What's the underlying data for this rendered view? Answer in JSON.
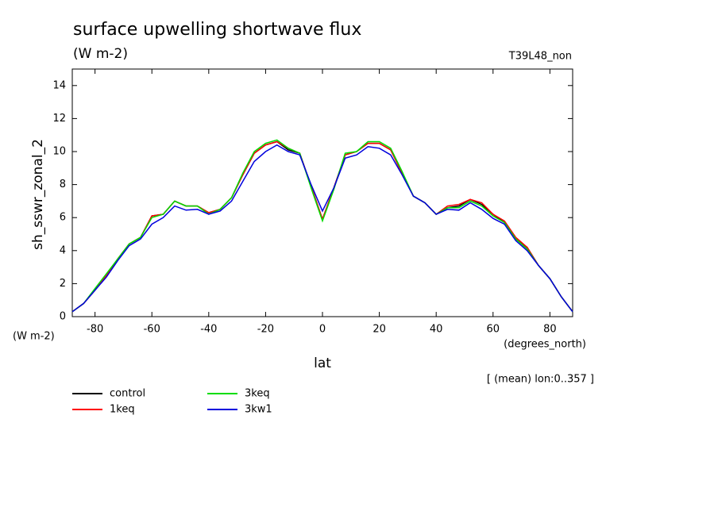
{
  "chart_data": {
    "type": "line",
    "title": "surface upwelling shortwave flux",
    "subtitle": "(W m-2)",
    "run_label": "T39L48_non",
    "y_axis_label": "sh_sswr_zonal_2",
    "y_units": "(W m-2)",
    "x_axis_label": "lat",
    "x_units": "(degrees_north)",
    "annotation": "[ (mean) lon:0..357 ]",
    "xlim": [
      -88,
      88
    ],
    "ylim": [
      0,
      15
    ],
    "xticks": [
      -80,
      -60,
      -40,
      -20,
      0,
      20,
      40,
      60,
      80
    ],
    "yticks": [
      0,
      2,
      4,
      6,
      8,
      10,
      12,
      14
    ],
    "x": [
      -88,
      -84,
      -80,
      -76,
      -72,
      -68,
      -64,
      -60,
      -56,
      -52,
      -48,
      -44,
      -40,
      -36,
      -32,
      -28,
      -24,
      -20,
      -16,
      -12,
      -8,
      -4,
      0,
      4,
      8,
      12,
      16,
      20,
      24,
      28,
      32,
      36,
      40,
      44,
      48,
      52,
      56,
      60,
      64,
      68,
      72,
      76,
      80,
      84,
      88
    ],
    "series": [
      {
        "name": "control",
        "color": "#000000",
        "values": [
          0.3,
          0.8,
          1.6,
          2.5,
          3.5,
          4.4,
          4.8,
          6.1,
          6.2,
          7.0,
          6.7,
          6.7,
          6.3,
          6.5,
          7.2,
          8.6,
          9.9,
          10.4,
          10.6,
          10.1,
          9.9,
          7.9,
          5.9,
          7.8,
          9.8,
          10.0,
          10.5,
          10.5,
          10.1,
          8.7,
          7.3,
          6.9,
          6.2,
          6.6,
          6.7,
          7.1,
          6.8,
          6.2,
          5.7,
          4.7,
          4.2,
          3.1,
          2.3,
          1.2,
          0.3
        ]
      },
      {
        "name": "1keq",
        "color": "#ff0000",
        "values": [
          0.3,
          0.8,
          1.6,
          2.5,
          3.5,
          4.4,
          4.8,
          6.1,
          6.2,
          7.0,
          6.7,
          6.7,
          6.3,
          6.5,
          7.2,
          8.6,
          9.9,
          10.4,
          10.6,
          10.2,
          9.9,
          7.9,
          5.9,
          7.8,
          9.8,
          10.0,
          10.5,
          10.5,
          10.1,
          8.7,
          7.3,
          6.9,
          6.2,
          6.7,
          6.8,
          7.1,
          6.9,
          6.2,
          5.8,
          4.8,
          4.2,
          3.1,
          2.3,
          1.2,
          0.3
        ]
      },
      {
        "name": "3keq",
        "color": "#00dd00",
        "values": [
          0.3,
          0.8,
          1.7,
          2.6,
          3.5,
          4.4,
          4.8,
          6.0,
          6.2,
          7.0,
          6.7,
          6.7,
          6.2,
          6.5,
          7.2,
          8.7,
          10.0,
          10.5,
          10.7,
          10.2,
          9.9,
          7.8,
          5.8,
          7.7,
          9.9,
          10.0,
          10.6,
          10.6,
          10.2,
          8.8,
          7.3,
          6.9,
          6.2,
          6.6,
          6.6,
          7.0,
          6.7,
          6.1,
          5.7,
          4.7,
          4.1,
          3.1,
          2.3,
          1.2,
          0.3
        ]
      },
      {
        "name": "3kw1",
        "color": "#0000dd",
        "values": [
          0.3,
          0.8,
          1.6,
          2.4,
          3.4,
          4.3,
          4.7,
          5.6,
          6.0,
          6.7,
          6.45,
          6.5,
          6.2,
          6.4,
          7.0,
          8.2,
          9.4,
          10.0,
          10.4,
          10.0,
          9.8,
          8.0,
          6.4,
          7.8,
          9.6,
          9.8,
          10.3,
          10.2,
          9.8,
          8.6,
          7.3,
          6.9,
          6.2,
          6.5,
          6.45,
          6.9,
          6.5,
          5.95,
          5.6,
          4.6,
          4.0,
          3.1,
          2.3,
          1.2,
          0.3
        ]
      }
    ]
  }
}
